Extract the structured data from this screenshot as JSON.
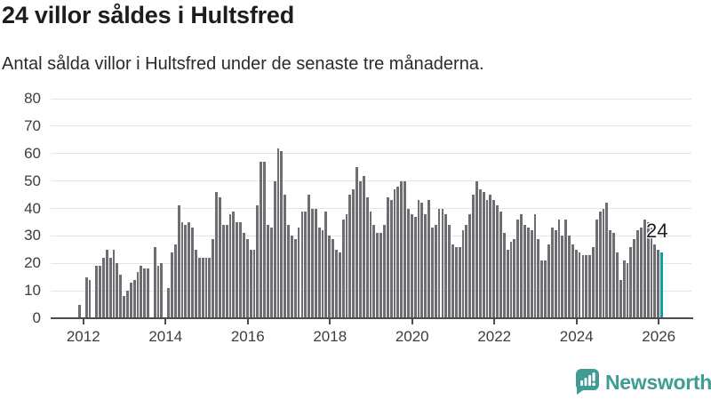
{
  "header": {
    "title": "24 villor såldes i Hultsfred",
    "subtitle": "Antal sålda villor i Hultsfred under de senaste tre månaderna."
  },
  "chart_data": {
    "type": "bar",
    "title": "24 villor såldes i Hultsfred",
    "subtitle": "Antal sålda villor i Hultsfred under de senaste tre månaderna.",
    "x_start": "2011-12",
    "x_end": "2026-02",
    "values": [
      5,
      0,
      15,
      14,
      0,
      19,
      19,
      22,
      25,
      22,
      25,
      20,
      16,
      8,
      10,
      13,
      14,
      17,
      19,
      18,
      18,
      0,
      26,
      19,
      20,
      0,
      11,
      24,
      27,
      41,
      35,
      34,
      35,
      33,
      25,
      22,
      22,
      22,
      22,
      29,
      46,
      44,
      34,
      34,
      38,
      39,
      35,
      35,
      31,
      29,
      25,
      25,
      41,
      57,
      57,
      34,
      33,
      50,
      62,
      61,
      45,
      34,
      30,
      29,
      33,
      39,
      39,
      45,
      40,
      40,
      33,
      32,
      39,
      30,
      29,
      25,
      24,
      36,
      38,
      45,
      47,
      55,
      50,
      52,
      44,
      39,
      34,
      31,
      31,
      34,
      44,
      43,
      47,
      48,
      50,
      50,
      40,
      38,
      37,
      43,
      42,
      38,
      43,
      33,
      34,
      40,
      40,
      38,
      34,
      27,
      26,
      26,
      32,
      34,
      38,
      45,
      50,
      47,
      46,
      43,
      45,
      43,
      41,
      39,
      31,
      25,
      28,
      29,
      36,
      38,
      34,
      33,
      32,
      38,
      29,
      21,
      21,
      27,
      33,
      32,
      36,
      30,
      36,
      30,
      27,
      25,
      24,
      23,
      23,
      23,
      26,
      36,
      39,
      40,
      42,
      32,
      31,
      24,
      14,
      21,
      20,
      26,
      29,
      32,
      33,
      36,
      35,
      33,
      27,
      25,
      24
    ],
    "highlight": {
      "index": 170,
      "value": 24,
      "label": "24",
      "color": "#0aa29f"
    },
    "bar_color": "#6e6d72",
    "ylim": [
      0,
      80
    ],
    "yticks": [
      0,
      10,
      20,
      30,
      40,
      50,
      60,
      70,
      80
    ],
    "xticks": [
      {
        "label": "2012",
        "month_index": 1
      },
      {
        "label": "2014",
        "month_index": 25
      },
      {
        "label": "2016",
        "month_index": 49
      },
      {
        "label": "2018",
        "month_index": 73
      },
      {
        "label": "2020",
        "month_index": 97
      },
      {
        "label": "2022",
        "month_index": 121
      },
      {
        "label": "2024",
        "month_index": 145
      },
      {
        "label": "2026",
        "month_index": 169
      }
    ],
    "grid": true,
    "legend": null
  },
  "branding": {
    "name": "Newsworthy",
    "icon": "newsworthy-speech-bubble-chart",
    "color": "#3f9c94"
  }
}
